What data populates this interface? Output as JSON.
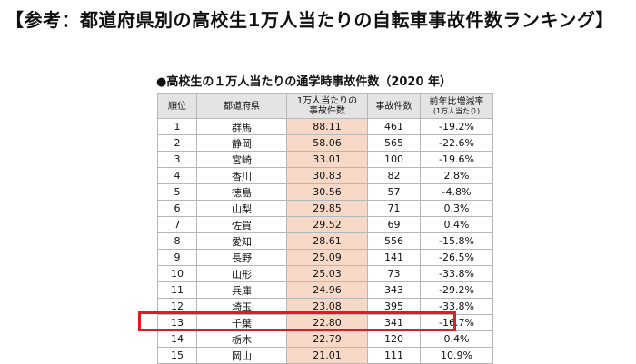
{
  "page_title": "【参考：都道府県別の高校生1万人当たりの自転車事故件数ランキング】",
  "table_heading": "●高校生の１万人当たりの通学時事故件数（2020 年）",
  "headers": {
    "rank": "順位",
    "prefecture": "都道府県",
    "rate_line1": "1万人当たりの",
    "rate_line2": "事故件数",
    "count": "事故件数",
    "change": "前年比増減率",
    "change_note": "(1万人当たり)"
  },
  "rows": [
    {
      "rank": "1",
      "prefecture": "群馬",
      "rate": "88.11",
      "count": "461",
      "change": "-19.2%"
    },
    {
      "rank": "2",
      "prefecture": "静岡",
      "rate": "58.06",
      "count": "565",
      "change": "-22.6%"
    },
    {
      "rank": "3",
      "prefecture": "宮崎",
      "rate": "33.01",
      "count": "100",
      "change": "-19.6%"
    },
    {
      "rank": "4",
      "prefecture": "香川",
      "rate": "30.83",
      "count": "82",
      "change": "2.8%"
    },
    {
      "rank": "5",
      "prefecture": "徳島",
      "rate": "30.56",
      "count": "57",
      "change": "-4.8%"
    },
    {
      "rank": "6",
      "prefecture": "山梨",
      "rate": "29.85",
      "count": "71",
      "change": "0.3%"
    },
    {
      "rank": "7",
      "prefecture": "佐賀",
      "rate": "29.52",
      "count": "69",
      "change": "0.4%"
    },
    {
      "rank": "8",
      "prefecture": "愛知",
      "rate": "28.61",
      "count": "556",
      "change": "-15.8%"
    },
    {
      "rank": "9",
      "prefecture": "長野",
      "rate": "25.09",
      "count": "141",
      "change": "-26.5%"
    },
    {
      "rank": "10",
      "prefecture": "山形",
      "rate": "25.03",
      "count": "73",
      "change": "-33.8%"
    },
    {
      "rank": "11",
      "prefecture": "兵庫",
      "rate": "24.96",
      "count": "343",
      "change": "-29.2%"
    },
    {
      "rank": "12",
      "prefecture": "埼玉",
      "rate": "23.08",
      "count": "395",
      "change": "-33.8%"
    },
    {
      "rank": "13",
      "prefecture": "千葉",
      "rate": "22.80",
      "count": "341",
      "change": "-16.7%"
    },
    {
      "rank": "14",
      "prefecture": "栃木",
      "rate": "22.79",
      "count": "120",
      "change": "0.4%"
    },
    {
      "rank": "15",
      "prefecture": "岡山",
      "rate": "21.01",
      "count": "111",
      "change": "10.9%"
    }
  ],
  "highlight_color": "#e01b22",
  "rate_column_color": "#f8d9c8",
  "header_color": "#e4e4e4"
}
